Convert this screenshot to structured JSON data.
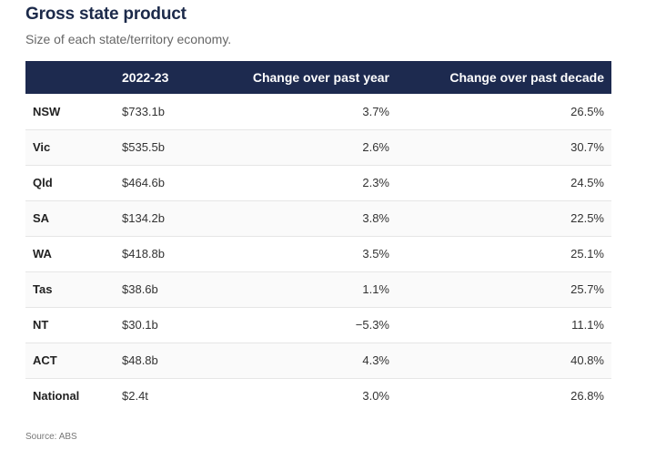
{
  "title": "Gross state product",
  "subtitle": "Size of each state/territory economy.",
  "source": "Source: ABS",
  "chart_data": {
    "type": "table",
    "columns": [
      "",
      "2022-23",
      "Change over past year",
      "Change over past decade"
    ],
    "rows": [
      [
        "NSW",
        "$733.1b",
        "3.7%",
        "26.5%"
      ],
      [
        "Vic",
        "$535.5b",
        "2.6%",
        "30.7%"
      ],
      [
        "Qld",
        "$464.6b",
        "2.3%",
        "24.5%"
      ],
      [
        "SA",
        "$134.2b",
        "3.8%",
        "22.5%"
      ],
      [
        "WA",
        "$418.8b",
        "3.5%",
        "25.1%"
      ],
      [
        "Tas",
        "$38.6b",
        "1.1%",
        "25.7%"
      ],
      [
        "NT",
        "$30.1b",
        "−5.3%",
        "11.1%"
      ],
      [
        "ACT",
        "$48.8b",
        "4.3%",
        "40.8%"
      ],
      [
        "National",
        "$2.4t",
        "3.0%",
        "26.8%"
      ]
    ],
    "colors": {
      "header_bg": "#1d2a4f",
      "header_text": "#ffffff",
      "title": "#1c2a4a"
    }
  }
}
